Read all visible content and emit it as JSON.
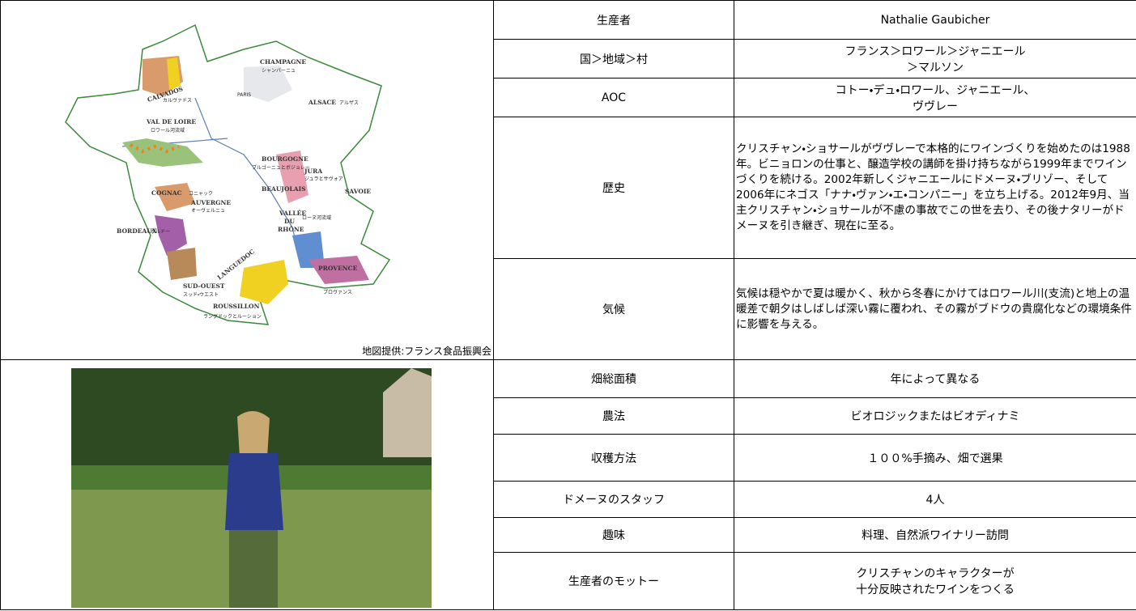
{
  "map": {
    "labels": [
      "CHAMPAGNE",
      "シャンパーニュ",
      "CALVADOS",
      "カルヴァドス",
      "PARIS",
      "ALSACE",
      "アルザス",
      "VAL DE LOIRE",
      "ロワール河流域",
      "BOURGOGNE",
      "ブルゴーニュとボジョレー",
      "JURA",
      "ジュラとサヴォア",
      "COGNAC",
      "コニャック",
      "AUVERGNE",
      "オーヴェルニュ",
      "BEAUJOLAIS",
      "SAVOIE",
      "VALLÉE",
      "DU",
      "RHÔNE",
      "ローヌ河流域",
      "BORDEAUX",
      "ボルドー",
      "LANGUEDOC",
      "PROVENCE",
      "プロヴァンス",
      "SUD-OUEST",
      "スッド・ウエスト",
      "ROUSSILLON",
      "ラングドックとルーション"
    ],
    "credit": "地図提供:フランス食品振興会"
  },
  "table": {
    "top_rows": [
      {
        "label": "生産者",
        "value": [
          "Nathalie Gaubicher"
        ]
      },
      {
        "label": "国＞地域＞村",
        "value": [
          "フランス＞ロワール＞ジャニエール",
          "＞マルソン"
        ]
      },
      {
        "label": "AOC",
        "value": [
          "コトー・デュ・ロワール、ジャニエール、",
          "ヴヴレー"
        ]
      },
      {
        "label": "歴史",
        "value": [
          "クリスチャン・ショサールがヴヴレーで本格的にワインづくりを始めたのは1988年。ビニョロンの仕事と、醸造学校の講師を掛け持ちながら1999年までワインづくりを続ける。2002年新しくジャニエールにドメーヌ・ブリゾー、そして2006年にネゴス「ナナ・ヴァン・エ・コンパニー」を立ち上げる。2012年9月、当主クリスチャン・ショサールが不慮の事故でこの世を去り、その後ナタリーがドメーヌを引き継ぎ、現在に至る。"
        ]
      },
      {
        "label": "気候",
        "value": [
          "気候は穏やかで夏は暖かく、秋から冬春にかけてはロワール川(支流)と地上の温暖差で朝夕はしばしば深い霧に覆われ、その霧がブドウの貴腐化などの環境条件に影響を与える。"
        ]
      }
    ],
    "bottom_rows": [
      {
        "label": "畑総面積",
        "value": [
          "年によって異なる"
        ]
      },
      {
        "label": "農法",
        "value": [
          "ビオロジックまたはビオディナミ"
        ]
      },
      {
        "label": "収穫方法",
        "value": [
          "１００%手摘み、畑で選果"
        ]
      },
      {
        "label": "ドメーヌのスタッフ",
        "value": [
          "4人"
        ]
      },
      {
        "label": "趣味",
        "value": [
          "料理、自然派ワイナリー訪問"
        ]
      },
      {
        "label": "生産者のモットー",
        "value": [
          "クリスチャンのキャラクターが",
          "十分反映されたワインをつくる"
        ]
      }
    ]
  }
}
